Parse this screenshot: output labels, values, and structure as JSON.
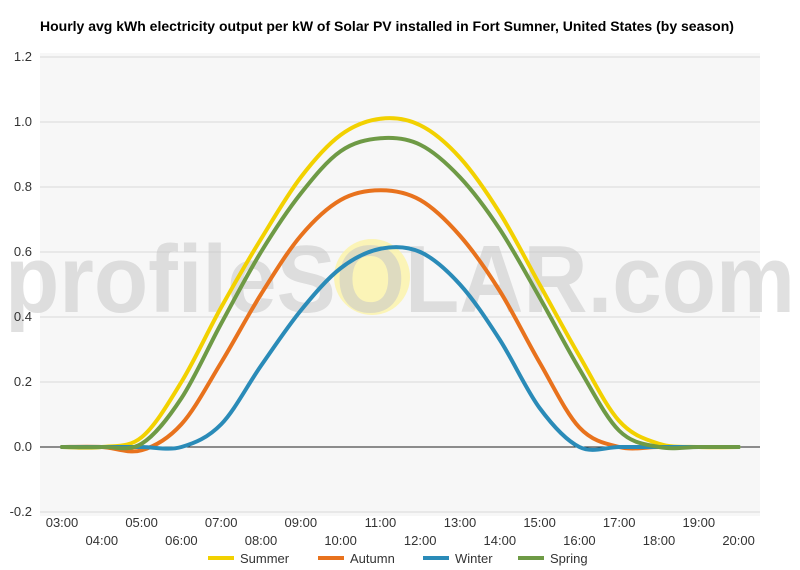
{
  "chart_data": {
    "type": "line",
    "title": "Hourly avg kWh electricity output per kW of Solar PV installed in Fort Sumner, United States (by season)",
    "xlabel": "",
    "ylabel": "",
    "ylim": [
      -0.2,
      1.2
    ],
    "yticks": [
      "1.2",
      "1.0",
      "0.8",
      "0.6",
      "0.4",
      "0.2",
      "0.0",
      "-0.2"
    ],
    "x": [
      "03:00",
      "04:00",
      "05:00",
      "06:00",
      "07:00",
      "08:00",
      "09:00",
      "10:00",
      "11:00",
      "12:00",
      "13:00",
      "14:00",
      "15:00",
      "16:00",
      "17:00",
      "18:00",
      "19:00",
      "20:00"
    ],
    "grid": true,
    "legend": "bottom",
    "series": [
      {
        "name": "Summer",
        "color": "#f2d100",
        "values": [
          0.0,
          0.0,
          0.03,
          0.2,
          0.43,
          0.64,
          0.83,
          0.96,
          1.01,
          0.99,
          0.89,
          0.72,
          0.5,
          0.28,
          0.08,
          0.01,
          0.0,
          0.0
        ]
      },
      {
        "name": "Autumn",
        "color": "#e8721d",
        "values": [
          0.0,
          0.0,
          -0.01,
          0.07,
          0.26,
          0.47,
          0.65,
          0.76,
          0.79,
          0.76,
          0.65,
          0.48,
          0.26,
          0.06,
          0.0,
          0.0,
          0.0,
          0.0
        ]
      },
      {
        "name": "Winter",
        "color": "#2a8bb8",
        "values": [
          0.0,
          0.0,
          0.0,
          0.0,
          0.07,
          0.25,
          0.42,
          0.55,
          0.61,
          0.6,
          0.5,
          0.33,
          0.12,
          0.0,
          0.0,
          0.0,
          0.0,
          0.0
        ]
      },
      {
        "name": "Spring",
        "color": "#6e9a45",
        "values": [
          0.0,
          0.0,
          0.01,
          0.15,
          0.38,
          0.6,
          0.78,
          0.91,
          0.95,
          0.93,
          0.83,
          0.67,
          0.46,
          0.24,
          0.05,
          0.0,
          0.0,
          0.0
        ]
      }
    ],
    "watermark": "profileSOLAR.com"
  }
}
